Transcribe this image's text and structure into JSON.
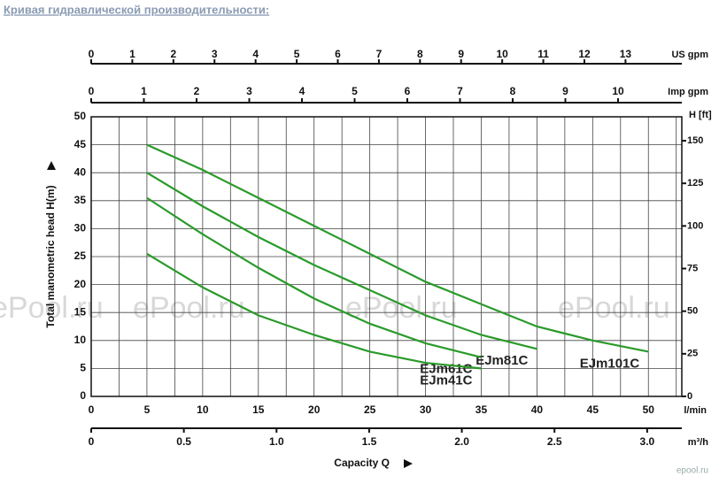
{
  "page_title": "Кривая гидравлической производительности:",
  "watermark": "ePool.ru",
  "corner_mark": "epool.ru",
  "chart_data": {
    "type": "line",
    "xlabel": "Capacity Q",
    "ylabel": "Total manometric head H(m)",
    "x_unit": "l/min",
    "y2_unit": "H [ft]",
    "x": [
      5,
      10,
      15,
      20,
      25,
      30,
      35,
      40,
      45,
      50
    ],
    "series": [
      {
        "name": "EJm101C",
        "color": "#2a9a2a",
        "values": [
          45,
          40.5,
          35.5,
          30.5,
          25.5,
          20.5,
          16.5,
          12.5,
          10,
          8
        ]
      },
      {
        "name": "EJm81C",
        "color": "#2a9a2a",
        "values": [
          40,
          34,
          28.5,
          23.5,
          19,
          14.5,
          11,
          8.5,
          null,
          null
        ]
      },
      {
        "name": "EJm61C",
        "color": "#2a9a2a",
        "values": [
          35.5,
          29,
          23,
          17.5,
          13,
          9.5,
          7,
          null,
          null,
          null
        ]
      },
      {
        "name": "EJm41C",
        "color": "#2a9a2a",
        "values": [
          25.5,
          19.5,
          14.5,
          11,
          8,
          6,
          5,
          null,
          null,
          null
        ]
      }
    ],
    "xlim": [
      0,
      53
    ],
    "xticks": [
      0,
      5,
      10,
      15,
      20,
      25,
      30,
      35,
      40,
      45,
      50
    ],
    "xgrid": [
      2.5,
      5,
      7.5,
      10,
      12.5,
      15,
      17.5,
      20,
      22.5,
      25,
      27.5,
      30,
      32.5,
      35,
      37.5,
      40,
      42.5,
      45,
      47.5,
      50,
      52.5
    ],
    "ylim": [
      0,
      50
    ],
    "yticks": [
      0,
      5,
      10,
      15,
      20,
      25,
      30,
      35,
      40,
      45,
      50
    ],
    "y2lim": [
      0,
      164.04
    ],
    "y2ticks": [
      0,
      25,
      50,
      75,
      100,
      125,
      150
    ],
    "grid": true,
    "extra_x_axes": [
      {
        "unit": "US gpm",
        "xlim": [
          0,
          14.37
        ],
        "xticks": [
          0,
          1,
          2,
          3,
          4,
          5,
          6,
          7,
          8,
          9,
          10,
          11,
          12,
          13
        ]
      },
      {
        "unit": "Imp gpm",
        "xlim": [
          0,
          11.21
        ],
        "xticks": [
          0,
          1,
          2,
          3,
          4,
          5,
          6,
          7,
          8,
          9,
          10
        ]
      },
      {
        "unit": "m³/h",
        "xlim": [
          0,
          3.187
        ],
        "xticks": [
          0,
          0.5,
          {
            "value": 1,
            "label": "1.0"
          },
          1.5,
          {
            "value": 2,
            "label": "2.0"
          },
          2.5,
          {
            "value": 3,
            "label": "3.0"
          }
        ]
      }
    ]
  }
}
